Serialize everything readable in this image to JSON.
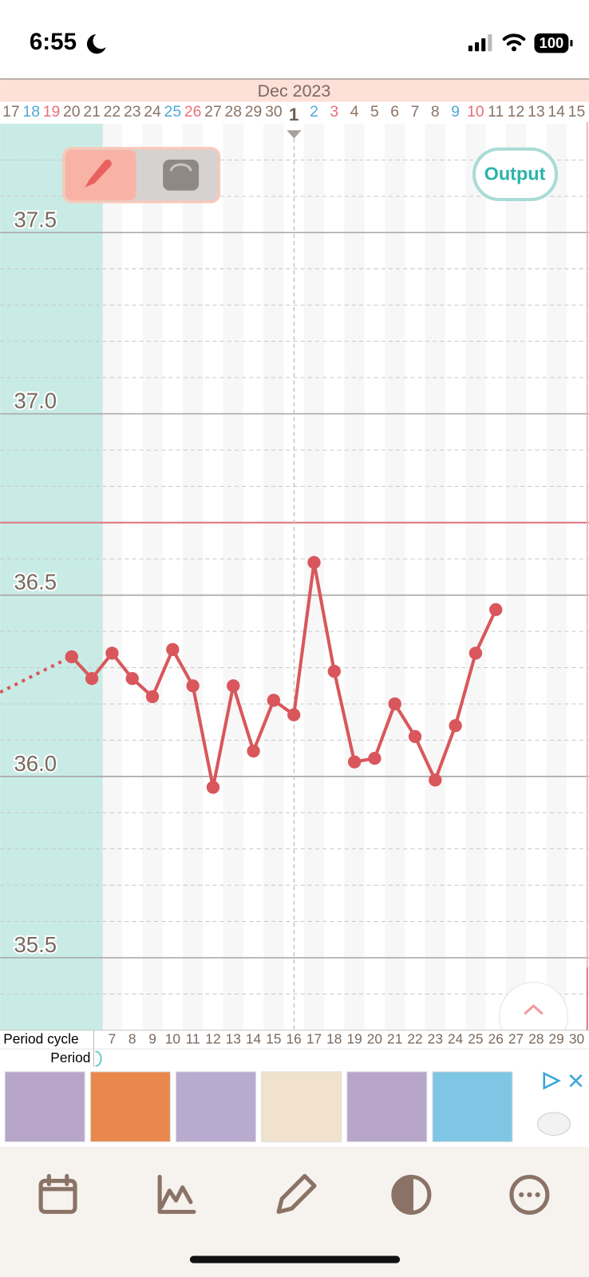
{
  "status_bar": {
    "time": "6:55",
    "battery": "100"
  },
  "output_button": "Output",
  "chart_data": {
    "type": "line",
    "title": "Dec 2023",
    "categories": [
      "17",
      "18",
      "19",
      "20",
      "21",
      "22",
      "23",
      "24",
      "25",
      "26",
      "27",
      "28",
      "29",
      "30",
      "1",
      "2",
      "3",
      "4",
      "5",
      "6",
      "7",
      "8",
      "9",
      "10",
      "11",
      "12",
      "13",
      "14",
      "15"
    ],
    "category_colors": [
      "#8a7366",
      "#4fa9d8",
      "#e8707a",
      "#8a7366",
      "#8a7366",
      "#8a7366",
      "#8a7366",
      "#8a7366",
      "#4fa9d8",
      "#e8707a",
      "#8a7366",
      "#8a7366",
      "#8a7366",
      "#8a7366",
      "#6e5f55",
      "#4fa9d8",
      "#e8707a",
      "#8a7366",
      "#8a7366",
      "#8a7366",
      "#8a7366",
      "#8a7366",
      "#4fa9d8",
      "#e8707a",
      "#8a7366",
      "#8a7366",
      "#8a7366",
      "#8a7366",
      "#8a7366"
    ],
    "values": [
      null,
      null,
      null,
      36.33,
      36.27,
      36.34,
      36.27,
      36.22,
      36.35,
      36.25,
      35.97,
      36.25,
      36.07,
      36.21,
      36.17,
      36.59,
      36.29,
      36.04,
      36.05,
      36.2,
      36.11,
      35.99,
      36.14,
      36.34,
      36.46,
      null,
      null,
      null,
      null
    ],
    "color": "#d9575c",
    "ylim": [
      35.3,
      37.8
    ],
    "yticks": [
      35.5,
      {
        "value": 36,
        "label": "36.0"
      },
      36.5,
      {
        "value": 37,
        "label": "37.0"
      },
      37.5
    ],
    "minor_yticks": [
      35.4,
      35.6,
      35.7,
      35.8,
      35.9,
      36.1,
      36.2,
      36.3,
      36.4,
      36.6,
      36.8,
      36.9,
      37.1,
      37.2,
      37.3,
      37.4,
      37.6,
      37.7
    ],
    "coverline": 36.7,
    "coverline_color": "#e07a86",
    "grid": true
  },
  "period_rows": {
    "cycle_label": "Period cycle",
    "cycle_days": [
      7,
      8,
      9,
      10,
      11,
      12,
      13,
      14,
      15,
      16,
      17,
      18,
      19,
      20,
      21,
      22,
      23,
      24,
      25,
      26,
      27,
      28,
      29,
      30
    ],
    "period_label": "Period"
  }
}
